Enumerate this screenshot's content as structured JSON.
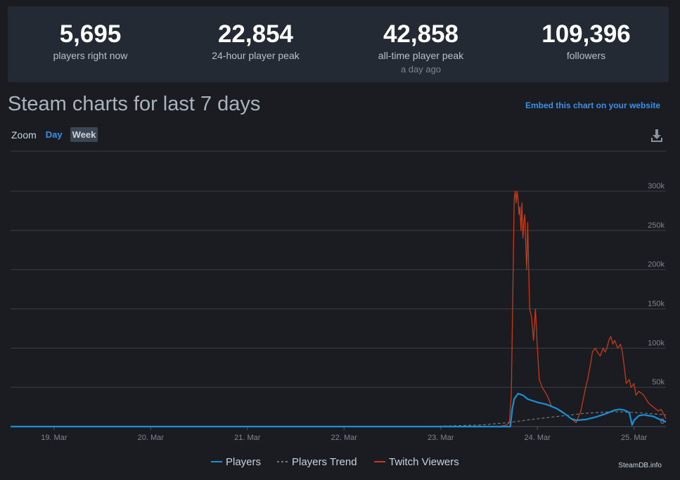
{
  "stats": [
    {
      "value": "5,695",
      "label": "players right now",
      "sub": ""
    },
    {
      "value": "22,854",
      "label": "24-hour player peak",
      "sub": ""
    },
    {
      "value": "42,858",
      "label": "all-time player peak",
      "sub": "a day ago"
    },
    {
      "value": "109,396",
      "label": "followers",
      "sub": ""
    }
  ],
  "title": "Steam charts for last 7 days",
  "embed_link": "Embed this chart on your website",
  "zoom": {
    "label": "Zoom",
    "day": "Day",
    "week": "Week"
  },
  "icons": {
    "download": "download-icon"
  },
  "watermark": "SteamDB.info",
  "colors": {
    "players": "#1a8fd8",
    "trend": "#6f7780",
    "twitch": "#c63a15",
    "accent": "#3b8fe8"
  },
  "chart_data": {
    "type": "line",
    "title": "",
    "xlabel": "",
    "ylabel": "",
    "x_range": [
      18.55,
      25.33
    ],
    "ylim": [
      0,
      300000
    ],
    "yticks": [
      0,
      50000,
      100000,
      150000,
      200000,
      250000,
      300000
    ],
    "ytick_labels": [
      "0",
      "50k",
      "100k",
      "150k",
      "200k",
      "250k",
      "300k"
    ],
    "xticks": [
      19,
      20,
      21,
      22,
      23,
      24,
      25
    ],
    "xtick_labels": [
      "19. Mar",
      "20. Mar",
      "21. Mar",
      "22. Mar",
      "23. Mar",
      "24. Mar",
      "25. Mar"
    ],
    "grid": true,
    "legend": "bottom-center",
    "series": [
      {
        "name": "Players",
        "x": [
          18.55,
          23.6,
          23.72,
          23.74,
          23.76,
          23.8,
          23.85,
          23.9,
          24.0,
          24.1,
          24.2,
          24.3,
          24.35,
          24.4,
          24.5,
          24.6,
          24.7,
          24.8,
          24.85,
          24.9,
          24.95,
          24.98,
          25.0,
          25.05,
          25.1,
          25.2,
          25.25,
          25.33
        ],
        "y": [
          0,
          0,
          0,
          22000,
          35000,
          42000,
          40000,
          35000,
          31000,
          28000,
          23000,
          15000,
          10000,
          8000,
          9000,
          12000,
          16000,
          21000,
          22000,
          21000,
          18000,
          2000,
          8000,
          14000,
          15000,
          13000,
          10000,
          6000
        ]
      },
      {
        "name": "Players Trend",
        "x": [
          18.55,
          22.5,
          23.0,
          23.4,
          23.7,
          24.0,
          24.5,
          24.8,
          25.0,
          25.33
        ],
        "y": [
          0,
          0,
          500,
          2000,
          5000,
          10000,
          17000,
          19000,
          18000,
          15000
        ]
      },
      {
        "name": "Twitch Viewers",
        "x": [
          18.55,
          23.6,
          23.68,
          23.71,
          23.73,
          23.75,
          23.76,
          23.77,
          23.78,
          23.79,
          23.8,
          23.81,
          23.82,
          23.83,
          23.84,
          23.85,
          23.86,
          23.87,
          23.88,
          23.89,
          23.9,
          23.92,
          23.94,
          23.96,
          23.98,
          24.0,
          24.02,
          24.05,
          24.1,
          24.15,
          24.2,
          24.25,
          24.3,
          24.35,
          24.4,
          24.45,
          24.5,
          24.52,
          24.55,
          24.57,
          24.6,
          24.62,
          24.65,
          24.68,
          24.7,
          24.72,
          24.74,
          24.76,
          24.78,
          24.8,
          24.83,
          24.86,
          24.88,
          24.9,
          24.92,
          24.95,
          24.97,
          25.0,
          25.02,
          25.05,
          25.1,
          25.15,
          25.2,
          25.25,
          25.28,
          25.31,
          25.33
        ],
        "y": [
          0,
          0,
          2000,
          5000,
          40000,
          200000,
          290000,
          300000,
          285000,
          300000,
          290000,
          270000,
          280000,
          250000,
          285000,
          240000,
          260000,
          270000,
          230000,
          200000,
          260000,
          150000,
          140000,
          110000,
          150000,
          100000,
          60000,
          50000,
          40000,
          25000,
          23000,
          20000,
          15000,
          10000,
          5000,
          20000,
          50000,
          60000,
          80000,
          95000,
          100000,
          95000,
          90000,
          100000,
          95000,
          100000,
          110000,
          115000,
          105000,
          110000,
          100000,
          105000,
          95000,
          75000,
          55000,
          60000,
          50000,
          55000,
          40000,
          45000,
          40000,
          30000,
          25000,
          20000,
          22000,
          15000,
          10000
        ]
      }
    ]
  }
}
